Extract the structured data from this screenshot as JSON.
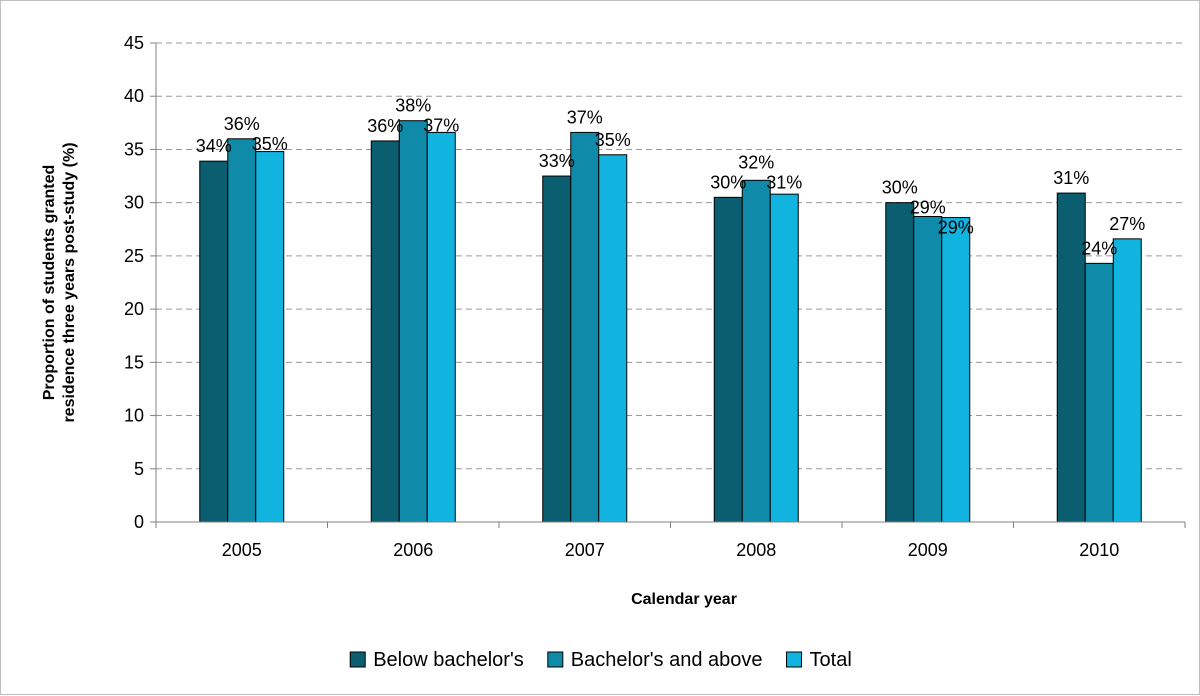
{
  "chart_data": {
    "type": "bar",
    "title": "",
    "xlabel": "Calendar year",
    "ylabel": "Proportion of students granted residence three years post-study (%)",
    "ylabel_lines": [
      "Proportion of students granted",
      "residence three years post-study (%)"
    ],
    "ylim": [
      0,
      45
    ],
    "yticks": [
      0,
      5,
      10,
      15,
      20,
      25,
      30,
      35,
      40,
      45
    ],
    "grid": true,
    "legend_position": "bottom",
    "categories": [
      "2005",
      "2006",
      "2007",
      "2008",
      "2009",
      "2010"
    ],
    "series": [
      {
        "name": "Below bachelor's",
        "color": "#0a5e70",
        "values": [
          33.9,
          35.8,
          32.5,
          30.5,
          30.0,
          30.9
        ],
        "labels": [
          "34%",
          "36%",
          "33%",
          "30%",
          "30%",
          "31%"
        ]
      },
      {
        "name": "Bachelor's and above",
        "color": "#0f8aa8",
        "values": [
          36.0,
          37.7,
          36.6,
          32.1,
          28.7,
          24.3
        ],
        "labels": [
          "36%",
          "38%",
          "37%",
          "32%",
          "29%",
          "24%"
        ]
      },
      {
        "name": "Total",
        "color": "#11b4df",
        "values": [
          34.8,
          36.6,
          34.5,
          30.8,
          28.6,
          26.6
        ],
        "labels": [
          "35%",
          "37%",
          "35%",
          "31%",
          "29%",
          "27%"
        ]
      }
    ]
  }
}
